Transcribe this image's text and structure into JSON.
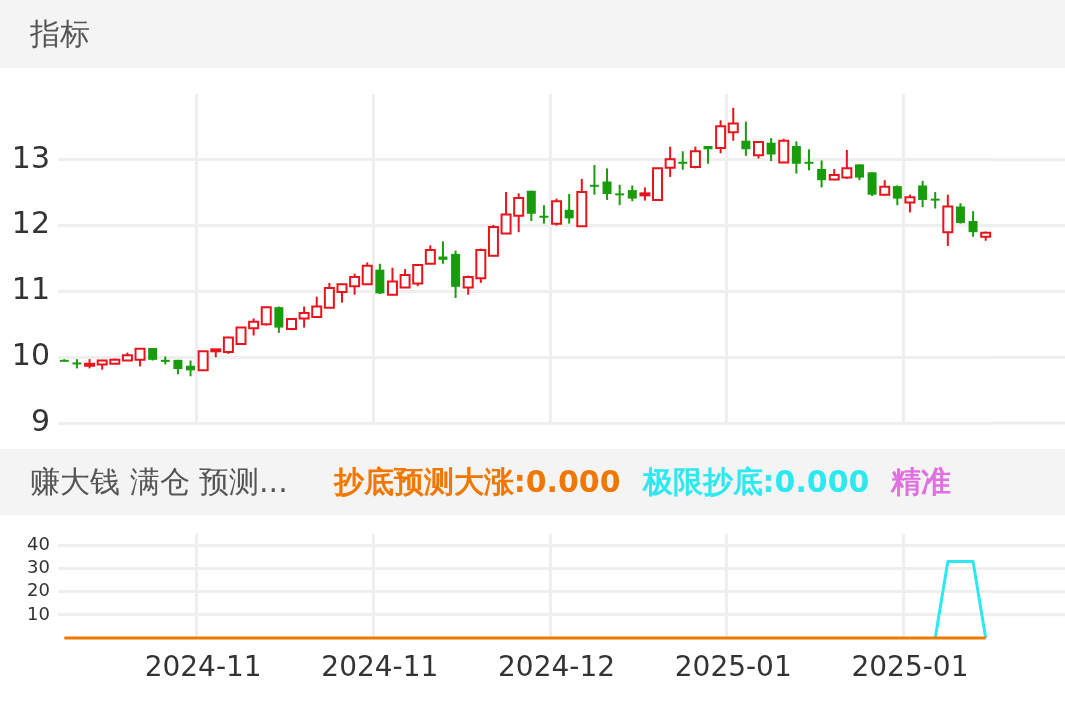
{
  "chart_data": [
    {
      "type": "candlestick",
      "title": "指标",
      "categories": [
        null,
        null,
        null,
        null,
        null,
        null,
        null,
        null,
        null,
        null,
        null,
        "2024-11",
        null,
        null,
        null,
        null,
        null,
        null,
        null,
        null,
        null,
        null,
        null,
        null,
        null,
        "2024-11",
        null,
        null,
        null,
        null,
        null,
        null,
        null,
        null,
        null,
        null,
        null,
        null,
        null,
        "2024-12",
        null,
        null,
        null,
        null,
        null,
        null,
        null,
        null,
        null,
        null,
        null,
        null,
        null,
        "2025-01",
        null,
        null,
        null,
        null,
        null,
        null,
        null,
        null,
        null,
        null,
        null,
        null,
        null,
        "2025-01",
        null,
        null,
        null,
        null,
        null,
        null
      ],
      "ohlc": [
        [
          9.96,
          9.97,
          9.94,
          9.95
        ],
        [
          9.92,
          9.97,
          9.83,
          9.9
        ],
        [
          9.89,
          9.97,
          9.83,
          9.9
        ],
        [
          9.89,
          9.96,
          9.81,
          9.95
        ],
        [
          9.9,
          9.98,
          9.9,
          9.96
        ],
        [
          9.95,
          10.07,
          9.95,
          10.03
        ],
        [
          9.96,
          10.14,
          9.86,
          10.13
        ],
        [
          10.14,
          10.14,
          9.95,
          9.96
        ],
        [
          9.96,
          10.01,
          9.89,
          9.95
        ],
        [
          9.96,
          9.96,
          9.74,
          9.82
        ],
        [
          9.87,
          9.95,
          9.71,
          9.8
        ],
        [
          9.8,
          10.09,
          9.8,
          10.09
        ],
        [
          10.09,
          10.12,
          10.0,
          10.12
        ],
        [
          10.08,
          10.31,
          10.05,
          10.3
        ],
        [
          10.2,
          10.46,
          10.2,
          10.45
        ],
        [
          10.44,
          10.59,
          10.33,
          10.54
        ],
        [
          10.5,
          10.77,
          10.48,
          10.76
        ],
        [
          10.76,
          10.77,
          10.37,
          10.45
        ],
        [
          10.43,
          10.58,
          10.41,
          10.58
        ],
        [
          10.59,
          10.77,
          10.45,
          10.67
        ],
        [
          10.61,
          10.92,
          10.6,
          10.77
        ],
        [
          10.75,
          11.13,
          10.75,
          11.05
        ],
        [
          10.99,
          11.12,
          10.83,
          11.11
        ],
        [
          11.08,
          11.27,
          10.95,
          11.22
        ],
        [
          11.11,
          11.44,
          11.1,
          11.39
        ],
        [
          11.33,
          11.42,
          10.96,
          10.97
        ],
        [
          10.95,
          11.36,
          10.94,
          11.15
        ],
        [
          11.06,
          11.34,
          11.05,
          11.25
        ],
        [
          11.12,
          11.41,
          11.08,
          11.4
        ],
        [
          11.42,
          11.7,
          11.42,
          11.63
        ],
        [
          11.53,
          11.76,
          11.42,
          11.48
        ],
        [
          11.57,
          11.62,
          10.9,
          11.07
        ],
        [
          11.06,
          11.24,
          10.95,
          11.22
        ],
        [
          11.2,
          11.65,
          11.13,
          11.63
        ],
        [
          11.54,
          12.01,
          11.53,
          11.98
        ],
        [
          11.88,
          12.51,
          11.88,
          12.17
        ],
        [
          12.15,
          12.49,
          11.9,
          12.42
        ],
        [
          12.53,
          12.53,
          12.07,
          12.18
        ],
        [
          12.15,
          12.31,
          12.03,
          12.13
        ],
        [
          12.03,
          12.41,
          12.0,
          12.37
        ],
        [
          12.24,
          12.48,
          12.03,
          12.11
        ],
        [
          11.99,
          12.71,
          11.99,
          12.51
        ],
        [
          12.62,
          12.92,
          12.47,
          12.6
        ],
        [
          12.67,
          12.87,
          12.39,
          12.48
        ],
        [
          12.49,
          12.62,
          12.31,
          12.47
        ],
        [
          12.54,
          12.61,
          12.37,
          12.41
        ],
        [
          12.47,
          12.58,
          12.38,
          12.49
        ],
        [
          12.39,
          12.88,
          12.39,
          12.87
        ],
        [
          12.88,
          13.2,
          12.74,
          13.01
        ],
        [
          12.97,
          13.13,
          12.85,
          12.95
        ],
        [
          12.89,
          13.2,
          12.87,
          13.13
        ],
        [
          13.21,
          13.21,
          12.94,
          13.16
        ],
        [
          13.18,
          13.6,
          13.1,
          13.51
        ],
        [
          13.42,
          13.79,
          13.29,
          13.55
        ],
        [
          13.29,
          13.58,
          13.06,
          13.16
        ],
        [
          13.07,
          13.27,
          13.02,
          13.27
        ],
        [
          13.26,
          13.33,
          12.98,
          13.08
        ],
        [
          12.96,
          13.32,
          12.96,
          13.29
        ],
        [
          13.21,
          13.28,
          12.79,
          12.94
        ],
        [
          12.97,
          13.16,
          12.84,
          12.95
        ],
        [
          12.86,
          12.99,
          12.58,
          12.69
        ],
        [
          12.7,
          12.86,
          12.69,
          12.77
        ],
        [
          12.73,
          13.15,
          12.71,
          12.87
        ],
        [
          12.93,
          12.93,
          12.69,
          12.73
        ],
        [
          12.81,
          12.81,
          12.45,
          12.47
        ],
        [
          12.47,
          12.69,
          12.46,
          12.59
        ],
        [
          12.6,
          12.61,
          12.31,
          12.41
        ],
        [
          12.35,
          12.47,
          12.2,
          12.43
        ],
        [
          12.61,
          12.68,
          12.28,
          12.39
        ],
        [
          12.41,
          12.51,
          12.26,
          12.39
        ],
        [
          11.9,
          12.47,
          11.69,
          12.29
        ],
        [
          12.29,
          12.34,
          12.03,
          12.04
        ],
        [
          12.07,
          12.22,
          11.83,
          11.9
        ],
        [
          11.83,
          11.91,
          11.77,
          11.89
        ]
      ],
      "colors": [
        "#189c0c",
        "#189c0c",
        "#e8131b",
        "#e8131b",
        "#e8131b",
        "#e8131b",
        "#e8131b",
        "#189c0c",
        "#189c0c",
        "#189c0c",
        "#189c0c",
        "#e8131b",
        "#e8131b",
        "#e8131b",
        "#e8131b",
        "#e8131b",
        "#e8131b",
        "#189c0c",
        "#e8131b",
        "#e8131b",
        "#e8131b",
        "#e8131b",
        "#e8131b",
        "#e8131b",
        "#e8131b",
        "#189c0c",
        "#e8131b",
        "#e8131b",
        "#e8131b",
        "#e8131b",
        "#189c0c",
        "#189c0c",
        "#e8131b",
        "#e8131b",
        "#e8131b",
        "#e8131b",
        "#e8131b",
        "#189c0c",
        "#189c0c",
        "#e8131b",
        "#189c0c",
        "#e8131b",
        "#189c0c",
        "#189c0c",
        "#189c0c",
        "#189c0c",
        "#e8131b",
        "#e8131b",
        "#e8131b",
        "#189c0c",
        "#e8131b",
        "#189c0c",
        "#e8131b",
        "#e8131b",
        "#189c0c",
        "#e8131b",
        "#189c0c",
        "#e8131b",
        "#189c0c",
        "#189c0c",
        "#189c0c",
        "#e8131b",
        "#e8131b",
        "#189c0c",
        "#189c0c",
        "#e8131b",
        "#189c0c",
        "#e8131b",
        "#189c0c",
        "#189c0c",
        "#e8131b",
        "#189c0c",
        "#189c0c",
        "#e8131b"
      ],
      "ylim": [
        9,
        14
      ],
      "yticks": [
        9,
        10,
        11,
        12,
        13
      ],
      "grid": true,
      "tick_labels": "y"
    },
    {
      "type": "line",
      "title": "赚大钱 满仓 预测...",
      "categories": [
        null,
        null,
        null,
        null,
        null,
        null,
        null,
        null,
        null,
        null,
        null,
        "2024-11",
        null,
        null,
        null,
        null,
        null,
        null,
        null,
        null,
        null,
        null,
        null,
        null,
        null,
        "2024-11",
        null,
        null,
        null,
        null,
        null,
        null,
        null,
        null,
        null,
        null,
        null,
        null,
        null,
        "2024-12",
        null,
        null,
        null,
        null,
        null,
        null,
        null,
        null,
        null,
        null,
        null,
        null,
        null,
        "2025-01",
        null,
        null,
        null,
        null,
        null,
        null,
        null,
        null,
        null,
        null,
        null,
        null,
        null,
        "2025-01",
        null,
        null,
        null,
        null,
        null,
        null
      ],
      "series": [
        {
          "name": "抄底预测大涨:0.000",
          "color": "#f07800",
          "values": [
            0,
            0,
            0,
            0,
            0,
            0,
            0,
            0,
            0,
            0,
            0,
            0,
            0,
            0,
            0,
            0,
            0,
            0,
            0,
            0,
            0,
            0,
            0,
            0,
            0,
            0,
            0,
            0,
            0,
            0,
            0,
            0,
            0,
            0,
            0,
            0,
            0,
            0,
            0,
            0,
            0,
            0,
            0,
            0,
            0,
            0,
            0,
            0,
            0,
            0,
            0,
            0,
            0,
            0,
            0,
            0,
            0,
            0,
            0,
            0,
            0,
            0,
            0,
            0,
            0,
            0,
            0,
            0,
            0,
            0,
            0,
            0,
            0,
            0
          ]
        },
        {
          "name": "极限抄底:0.000",
          "color": "#2ee8f0",
          "values": [
            null,
            null,
            null,
            null,
            null,
            null,
            null,
            null,
            null,
            null,
            null,
            null,
            null,
            null,
            null,
            null,
            null,
            null,
            null,
            null,
            null,
            null,
            null,
            null,
            null,
            null,
            null,
            null,
            null,
            null,
            null,
            null,
            null,
            null,
            null,
            null,
            null,
            null,
            null,
            null,
            null,
            null,
            null,
            null,
            null,
            null,
            null,
            null,
            null,
            null,
            null,
            null,
            null,
            null,
            null,
            null,
            null,
            null,
            null,
            null,
            null,
            null,
            null,
            null,
            null,
            null,
            null,
            null,
            null,
            0,
            33,
            33,
            33,
            0
          ]
        },
        {
          "name": "精准",
          "color": "#e070e0",
          "values": [
            null,
            null,
            null,
            null,
            null,
            null,
            null,
            null,
            null,
            null,
            null,
            null,
            null,
            null,
            null,
            null,
            null,
            null,
            null,
            null,
            null,
            null,
            null,
            null,
            null,
            null,
            null,
            null,
            null,
            null,
            null,
            null,
            null,
            null,
            null,
            null,
            null,
            null,
            null,
            null,
            null,
            null,
            null,
            null,
            null,
            null,
            null,
            null,
            null,
            null,
            null,
            null,
            null,
            null,
            null,
            null,
            null,
            null,
            null,
            null,
            null,
            null,
            null,
            null,
            null,
            null,
            null,
            null,
            null,
            null,
            null,
            null,
            null,
            null
          ]
        }
      ],
      "ylim": [
        0,
        45
      ],
      "yticks": [
        10,
        20,
        30,
        40
      ],
      "grid": true,
      "legend": "top"
    }
  ]
}
